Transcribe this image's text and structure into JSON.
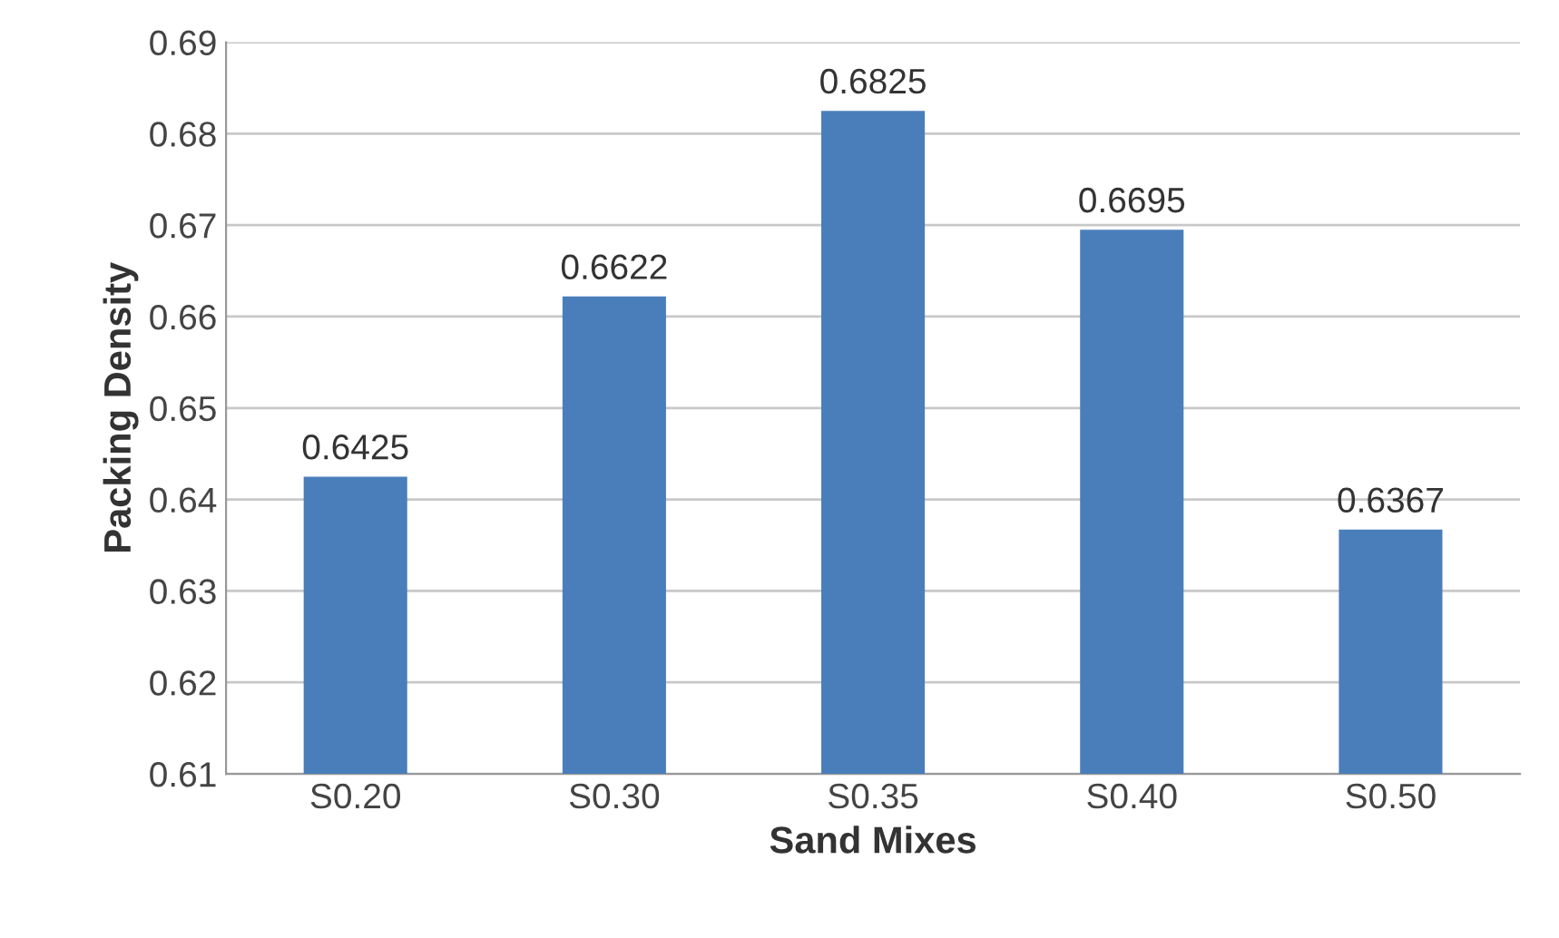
{
  "chart_data": {
    "type": "bar",
    "xlabel": "Sand Mixes",
    "ylabel": "Packing Density",
    "categories": [
      "S0.20",
      "S0.30",
      "S0.35",
      "S0.40",
      "S0.50"
    ],
    "values": [
      0.6425,
      0.6622,
      0.6825,
      0.6695,
      0.6367
    ],
    "color": "#4a7ebb",
    "ylim": [
      0.61,
      0.69
    ],
    "yticks": [
      0.61,
      0.62,
      0.63,
      0.64,
      0.65,
      0.66,
      0.67,
      0.68,
      0.69
    ],
    "grid": "y",
    "data_labels": true
  }
}
